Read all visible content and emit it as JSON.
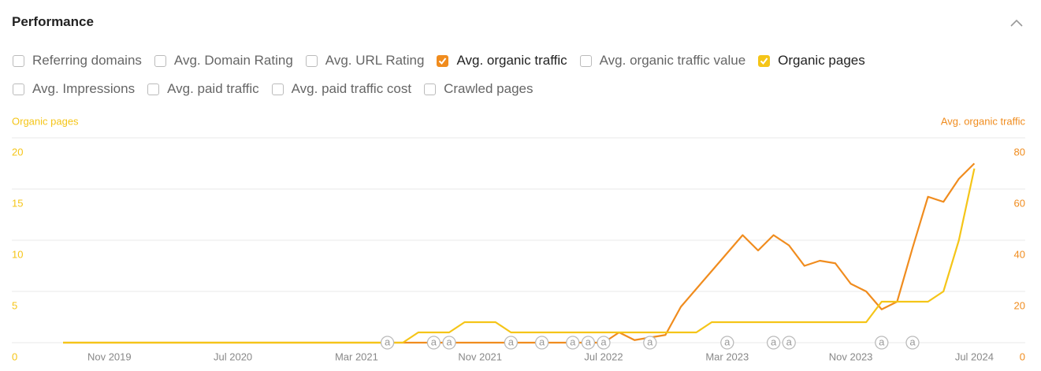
{
  "header": {
    "title": "Performance"
  },
  "checkboxes": [
    [
      {
        "label": "Referring domains",
        "checked": false
      },
      {
        "label": "Avg. Domain Rating",
        "checked": false
      },
      {
        "label": "Avg. URL Rating",
        "checked": false
      },
      {
        "label": "Avg. organic traffic",
        "checked": true,
        "color": "#f08c1e"
      },
      {
        "label": "Avg. organic traffic value",
        "checked": false
      },
      {
        "label": "Organic pages",
        "checked": true,
        "color": "#f5c518"
      }
    ],
    [
      {
        "label": "Avg. Impressions",
        "checked": false
      },
      {
        "label": "Avg. paid traffic",
        "checked": false
      },
      {
        "label": "Avg. paid traffic cost",
        "checked": false
      },
      {
        "label": "Crawled pages",
        "checked": false
      }
    ]
  ],
  "chart_data": {
    "type": "line",
    "y_label": "Organic pages",
    "y2_label": "Avg. organic traffic",
    "x": [
      "Aug 2019",
      "Sep 2019",
      "Oct 2019",
      "Nov 2019",
      "Dec 2019",
      "Jan 2020",
      "Feb 2020",
      "Mar 2020",
      "Apr 2020",
      "May 2020",
      "Jun 2020",
      "Jul 2020",
      "Aug 2020",
      "Sep 2020",
      "Oct 2020",
      "Nov 2020",
      "Dec 2020",
      "Jan 2021",
      "Feb 2021",
      "Mar 2021",
      "Apr 2021",
      "May 2021",
      "Jun 2021",
      "Jul 2021",
      "Aug 2021",
      "Sep 2021",
      "Oct 2021",
      "Nov 2021",
      "Dec 2021",
      "Jan 2022",
      "Feb 2022",
      "Mar 2022",
      "Apr 2022",
      "May 2022",
      "Jun 2022",
      "Jul 2022",
      "Aug 2022",
      "Sep 2022",
      "Oct 2022",
      "Nov 2022",
      "Dec 2022",
      "Jan 2023",
      "Feb 2023",
      "Mar 2023",
      "Apr 2023",
      "May 2023",
      "Jun 2023",
      "Jul 2023",
      "Aug 2023",
      "Sep 2023",
      "Oct 2023",
      "Nov 2023",
      "Dec 2023",
      "Jan 2024",
      "Feb 2024",
      "Mar 2024",
      "Apr 2024",
      "May 2024",
      "Jun 2024",
      "Jul 2024"
    ],
    "xticks": [
      "Nov 2019",
      "Jul 2020",
      "Mar 2021",
      "Nov 2021",
      "Jul 2022",
      "Mar 2023",
      "Nov 2023",
      "Jul 2024"
    ],
    "series": [
      {
        "name": "Avg. organic traffic",
        "color": "#f08c1e",
        "axis": "y2",
        "values": [
          0,
          0,
          0,
          0,
          0,
          0,
          0,
          0,
          0,
          0,
          0,
          0,
          0,
          0,
          0,
          0,
          0,
          0,
          0,
          0,
          0,
          0,
          0,
          0,
          0,
          0,
          0,
          0,
          0,
          0,
          0,
          0,
          0,
          0,
          0,
          0,
          4,
          1,
          2,
          3,
          14,
          21,
          28,
          35,
          42,
          36,
          42,
          38,
          30,
          32,
          31,
          23,
          20,
          13,
          16,
          37,
          57,
          55,
          64,
          70
        ]
      },
      {
        "name": "Organic pages",
        "color": "#f5c518",
        "values": [
          0,
          0,
          0,
          0,
          0,
          0,
          0,
          0,
          0,
          0,
          0,
          0,
          0,
          0,
          0,
          0,
          0,
          0,
          0,
          0,
          0,
          0,
          0,
          1,
          1,
          1,
          2,
          2,
          2,
          1,
          1,
          1,
          1,
          1,
          1,
          1,
          1,
          1,
          1,
          1,
          1,
          1,
          2,
          2,
          2,
          2,
          2,
          2,
          2,
          2,
          2,
          2,
          2,
          4,
          4,
          4,
          4,
          5,
          10,
          17
        ]
      }
    ],
    "ylim": [
      0,
      20
    ],
    "yticks": [
      0,
      5,
      10,
      15,
      20
    ],
    "y2lim": [
      0,
      80
    ],
    "y2ticks": [
      0,
      20,
      40,
      60,
      80
    ],
    "grid": true,
    "annotations": [
      {
        "x": "May 2021",
        "label": "a"
      },
      {
        "x": "Aug 2021",
        "label": "a"
      },
      {
        "x": "Sep 2021",
        "label": "a"
      },
      {
        "x": "Jan 2022",
        "label": "a"
      },
      {
        "x": "Mar 2022",
        "label": "a"
      },
      {
        "x": "May 2022",
        "label": "a"
      },
      {
        "x": "Jun 2022",
        "label": "a"
      },
      {
        "x": "Jul 2022",
        "label": "a"
      },
      {
        "x": "Oct 2022",
        "label": "a"
      },
      {
        "x": "Mar 2023",
        "label": "a"
      },
      {
        "x": "Jun 2023",
        "label": "a"
      },
      {
        "x": "Jul 2023",
        "label": "a"
      },
      {
        "x": "Jan 2024",
        "label": "a"
      },
      {
        "x": "Mar 2024",
        "label": "a"
      }
    ]
  }
}
